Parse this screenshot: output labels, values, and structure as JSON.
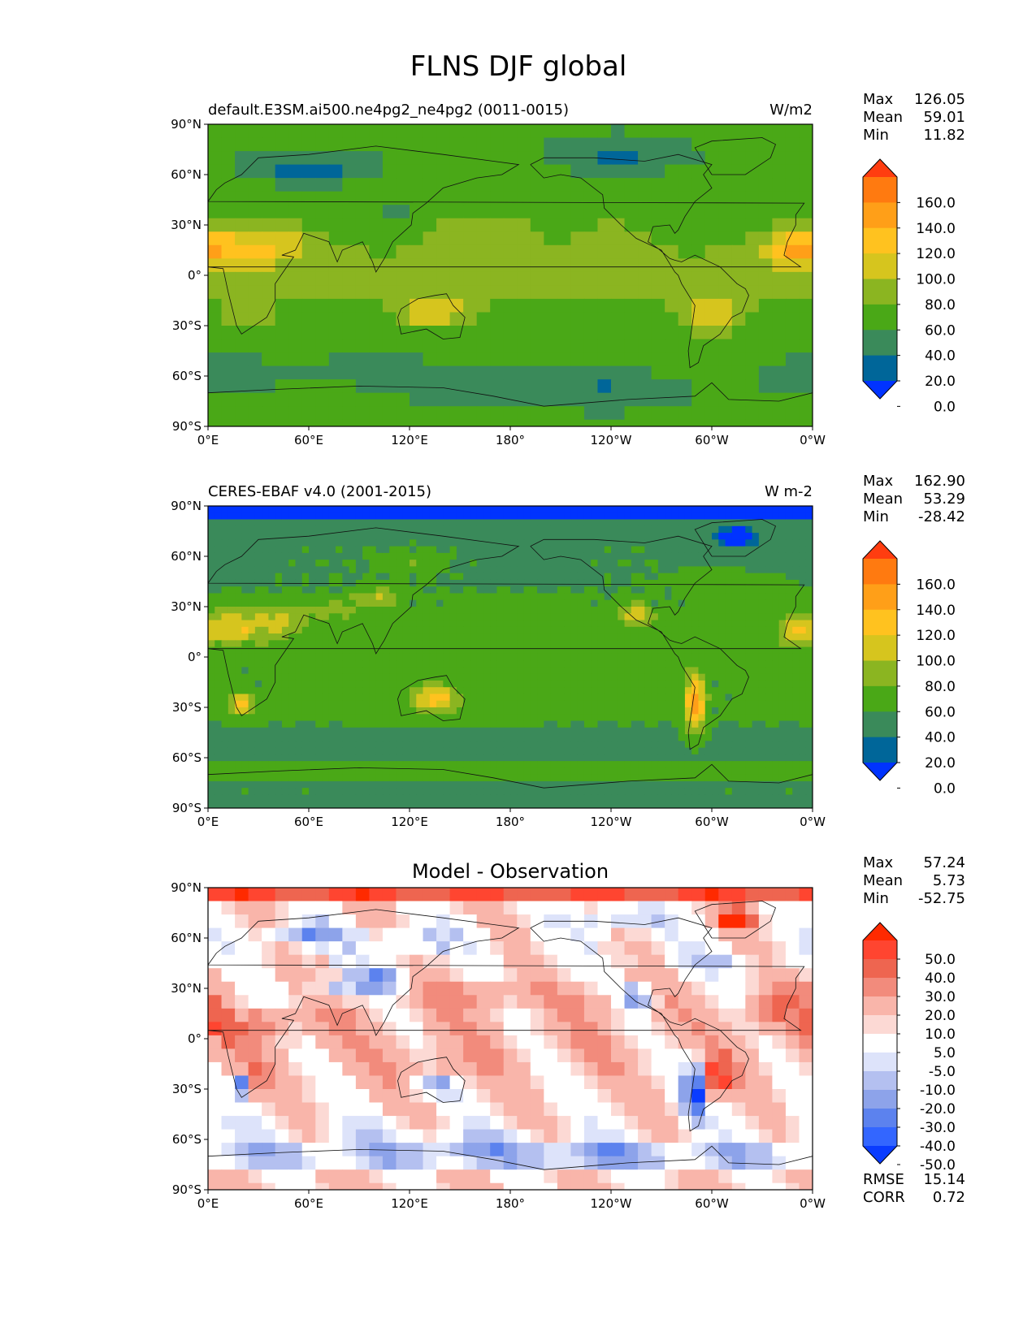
{
  "figure": {
    "title": "FLNS DJF global"
  },
  "chart_data": [
    {
      "type": "heatmap",
      "title": "default.E3SM.ai500.ne4pg2_ne4pg2 (0011-0015)",
      "units": "W/m2",
      "stats": {
        "max_label": "Max",
        "max": "126.05",
        "mean_label": "Mean",
        "mean": "59.01",
        "min_label": "Min",
        "min": "11.82"
      },
      "colorbar": {
        "labels": [
          "160.0",
          "140.0",
          "120.0",
          "100.0",
          "80.0",
          "60.0",
          "40.0",
          "20.0",
          "0.0"
        ],
        "colors": [
          "#0033ff",
          "#006699",
          "#3a8a5a",
          "#4aa817",
          "#8bb521",
          "#d6c51e",
          "#ffc21f",
          "#ff9f18",
          "#ff7a10",
          "#ff3d10"
        ],
        "extend": "both"
      },
      "x_tick_labels": [
        "0°E",
        "60°E",
        "120°E",
        "180°",
        "120°W",
        "60°W",
        "0°W"
      ],
      "y_tick_labels": [
        "90°N",
        "60°N",
        "30°N",
        "0°",
        "30°S",
        "60°S",
        "90°S"
      ],
      "xlim": [
        0,
        360
      ],
      "ylim": [
        -90,
        90
      ]
    },
    {
      "type": "heatmap",
      "title": "CERES-EBAF v4.0 (2001-2015)",
      "units": "W m-2",
      "stats": {
        "max_label": "Max",
        "max": "162.90",
        "mean_label": "Mean",
        "mean": "53.29",
        "min_label": "Min",
        "min": "-28.42"
      },
      "colorbar": {
        "labels": [
          "160.0",
          "140.0",
          "120.0",
          "100.0",
          "80.0",
          "60.0",
          "40.0",
          "20.0",
          "0.0"
        ],
        "colors": [
          "#0033ff",
          "#006699",
          "#3a8a5a",
          "#4aa817",
          "#8bb521",
          "#d6c51e",
          "#ffc21f",
          "#ff9f18",
          "#ff7a10",
          "#ff3d10"
        ],
        "extend": "both"
      },
      "x_tick_labels": [
        "0°E",
        "60°E",
        "120°E",
        "180°",
        "120°W",
        "60°W",
        "0°W"
      ],
      "y_tick_labels": [
        "90°N",
        "60°N",
        "30°N",
        "0°",
        "30°S",
        "60°S",
        "90°S"
      ],
      "xlim": [
        0,
        360
      ],
      "ylim": [
        -90,
        90
      ]
    },
    {
      "type": "heatmap",
      "title": "Model - Observation",
      "units": "",
      "stats": {
        "max_label": "Max",
        "max": "57.24",
        "mean_label": "Mean",
        "mean": "5.73",
        "min_label": "Min",
        "min": "-52.75"
      },
      "colorbar": {
        "labels": [
          "50.0",
          "40.0",
          "30.0",
          "20.0",
          "10.0",
          "5.0",
          "-5.0",
          "-10.0",
          "-20.0",
          "-30.0",
          "-40.0",
          "-50.0"
        ],
        "colors": [
          "#0a3cff",
          "#3366ff",
          "#5c82ee",
          "#8da3ea",
          "#b4c0f0",
          "#dde3fa",
          "#ffffff",
          "#fcd9d4",
          "#f9b5aa",
          "#f28b7c",
          "#ee6550",
          "#ff4530",
          "#ff2a00"
        ],
        "extend": "both"
      },
      "rmse_label": "RMSE",
      "rmse": "15.14",
      "corr_label": "CORR",
      "corr": "0.72",
      "x_tick_labels": [
        "0°E",
        "60°E",
        "120°E",
        "180°",
        "120°W",
        "60°W",
        "0°W"
      ],
      "y_tick_labels": [
        "90°N",
        "60°N",
        "30°N",
        "0°",
        "30°S",
        "60°S",
        "90°S"
      ],
      "xlim": [
        0,
        360
      ],
      "ylim": [
        -90,
        90
      ]
    }
  ]
}
